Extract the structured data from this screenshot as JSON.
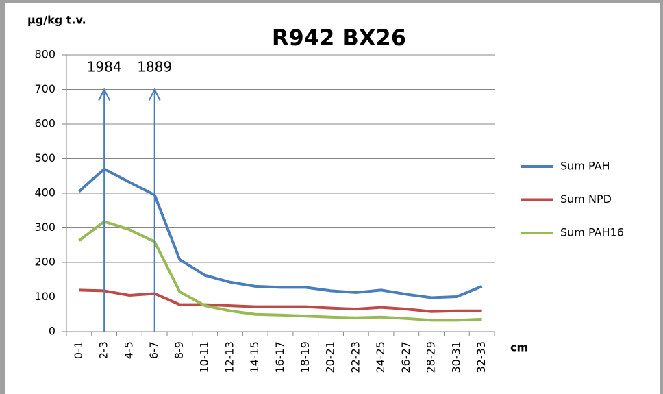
{
  "chart_data": {
    "type": "line",
    "title": "R942 BX26",
    "y_label": "µg/kg t.v.",
    "x_label": "cm",
    "categories": [
      "0-1",
      "2-3",
      "4-5",
      "6-7",
      "8-9",
      "10-11",
      "12-13",
      "14-15",
      "16-17",
      "18-19",
      "20-21",
      "22-23",
      "24-25",
      "26-27",
      "28-29",
      "30-31",
      "32-33"
    ],
    "series": [
      {
        "name": "Sum PAH",
        "color": "#4a7ebb",
        "values": [
          405,
          470,
          432,
          395,
          208,
          163,
          143,
          131,
          128,
          128,
          118,
          113,
          120,
          108,
          98,
          101,
          131
        ]
      },
      {
        "name": "Sum NPD",
        "color": "#be4b48",
        "values": [
          120,
          118,
          105,
          110,
          78,
          78,
          75,
          72,
          72,
          72,
          68,
          65,
          70,
          65,
          58,
          60,
          60
        ]
      },
      {
        "name": "Sum PAH16",
        "color": "#98b954",
        "values": [
          263,
          318,
          295,
          260,
          115,
          75,
          60,
          50,
          48,
          45,
          42,
          40,
          42,
          38,
          33,
          33,
          36
        ]
      }
    ],
    "annotations": [
      {
        "text": "1984",
        "x": "2-3",
        "y": 700
      },
      {
        "text": "1889",
        "x": "6-7",
        "y": 700
      }
    ],
    "ylim": [
      0,
      800
    ],
    "yticks": [
      0,
      100,
      200,
      300,
      400,
      500,
      600,
      700,
      800
    ],
    "grid": true,
    "legend": "right"
  }
}
